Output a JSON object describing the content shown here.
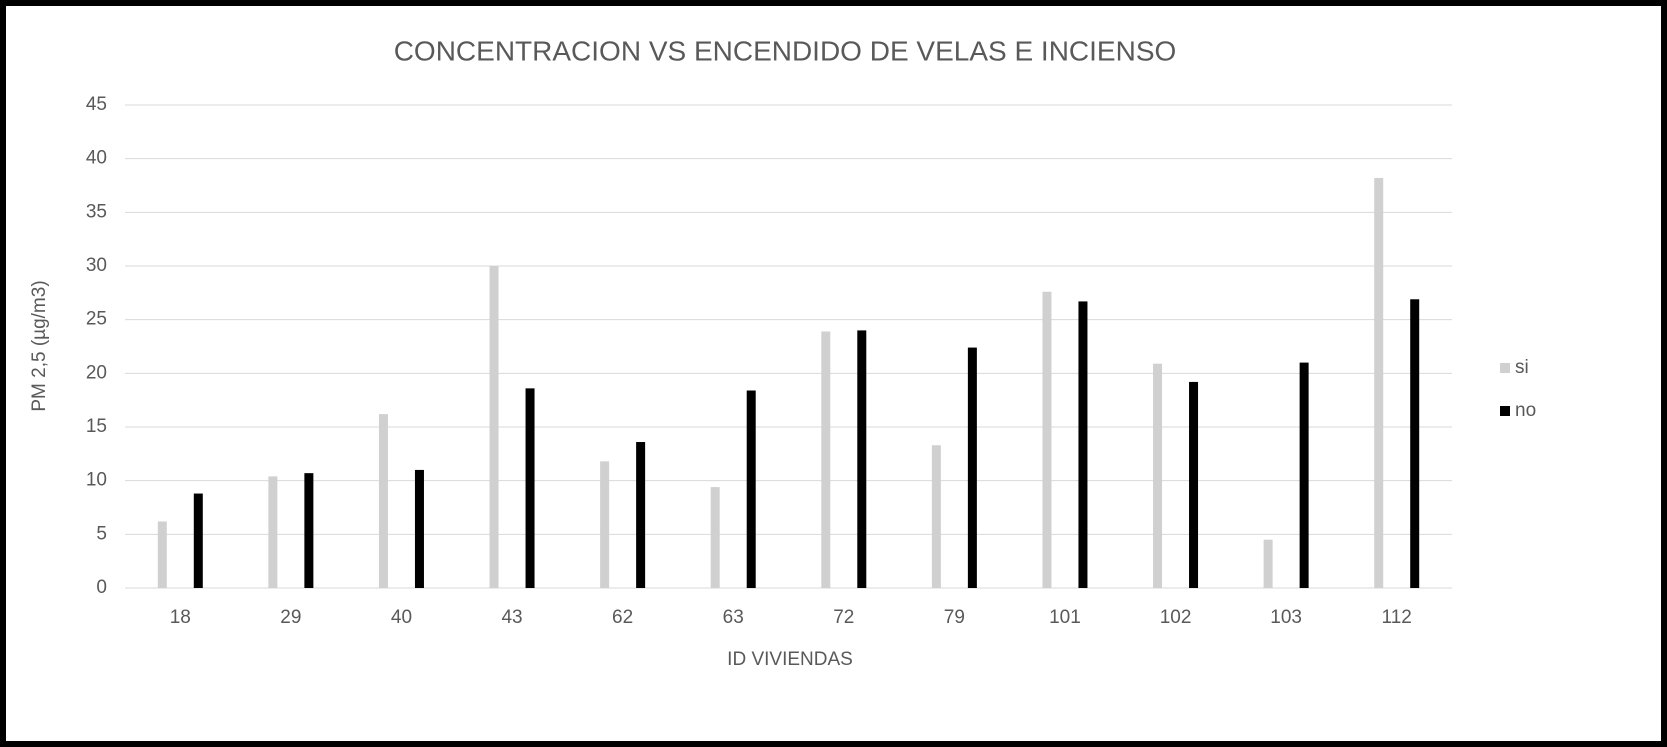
{
  "chart_data": {
    "type": "bar",
    "title": "CONCENTRACION VS ENCENDIDO  DE VELAS E INCIENSO",
    "x_label": "ID VIVIENDAS",
    "y_label": "PM 2,5 (µg/m3)",
    "categories": [
      "18",
      "29",
      "40",
      "43",
      "62",
      "63",
      "72",
      "79",
      "101",
      "102",
      "103",
      "112"
    ],
    "series": [
      {
        "name": "si",
        "color": "#d0d0d0",
        "values": [
          6.2,
          10.4,
          16.2,
          30,
          11.8,
          9.4,
          23.9,
          13.3,
          27.6,
          20.9,
          4.5,
          38.2
        ]
      },
      {
        "name": "no",
        "color": "#000000",
        "values": [
          8.8,
          10.7,
          11,
          18.6,
          13.6,
          18.4,
          24,
          22.4,
          26.7,
          19.2,
          21,
          26.9
        ]
      }
    ],
    "ylim": [
      0,
      45
    ],
    "yticks": [
      0,
      5,
      10,
      15,
      20,
      25,
      30,
      35,
      40,
      45
    ],
    "grid": true,
    "legend": "right"
  }
}
